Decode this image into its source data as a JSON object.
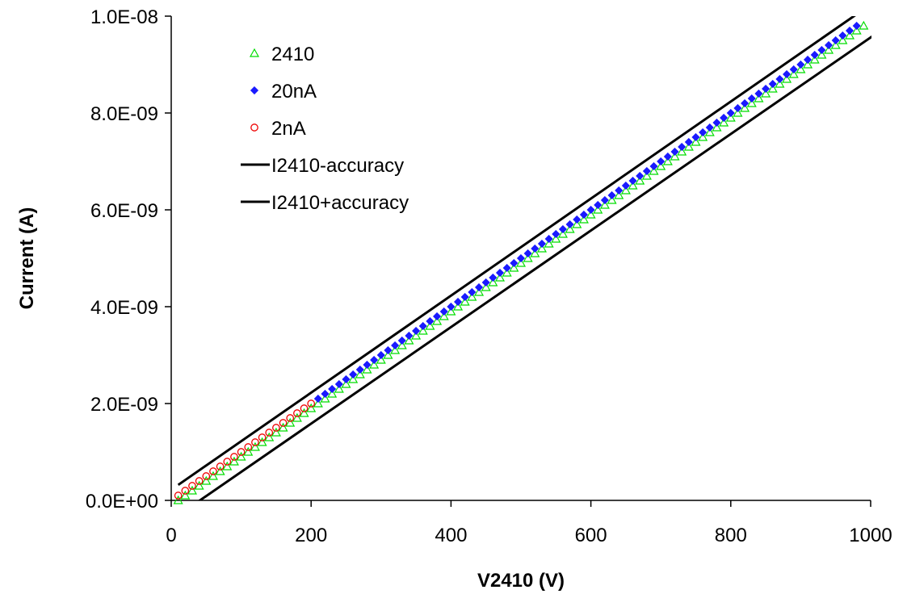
{
  "chart_data": {
    "type": "scatter",
    "title": "",
    "xlabel": "V2410 (V)",
    "ylabel": "Current (A)",
    "xlim": [
      0,
      1000
    ],
    "ylim": [
      0,
      1e-08
    ],
    "x_ticks": [
      0,
      200,
      400,
      600,
      800,
      1000
    ],
    "x_tick_labels": [
      "0",
      "200",
      "400",
      "600",
      "800",
      "1000"
    ],
    "y_ticks": [
      0,
      2e-09,
      4e-09,
      6e-09,
      8e-09,
      1e-08
    ],
    "y_tick_labels": [
      "0.0E+00",
      "2.0E-09",
      "4.0E-09",
      "6.0E-09",
      "8.0E-09",
      "1.0E-08"
    ],
    "grid": false,
    "legend_position": "top-left",
    "series": [
      {
        "name": "2410",
        "kind": "scatter",
        "marker": "open-triangle",
        "color": "#00dd00",
        "x_start": 10,
        "x_end": 990,
        "x_step": 10,
        "slope_A_per_V": 1e-11,
        "offset_A": -1e-10
      },
      {
        "name": "20nA",
        "kind": "scatter",
        "marker": "filled-diamond",
        "color": "#1a1aff",
        "x_start": 210,
        "x_end": 980,
        "x_step": 10,
        "slope_A_per_V": 1e-11,
        "offset_A": 0
      },
      {
        "name": "2nA",
        "kind": "scatter",
        "marker": "open-circle",
        "color": "#ee0000",
        "x_start": 10,
        "x_end": 200,
        "x_step": 10,
        "slope_A_per_V": 1e-11,
        "offset_A": 0
      },
      {
        "name": "I2410-accuracy",
        "kind": "line",
        "color": "#000000",
        "x": [
          30,
          1010
        ],
        "y": [
          -1.1e-10,
          9.66e-09
        ]
      },
      {
        "name": "I2410+accuracy",
        "kind": "line",
        "color": "#000000",
        "x": [
          10,
          990
        ],
        "y": [
          3.2e-10,
          1.014e-08
        ]
      }
    ]
  }
}
